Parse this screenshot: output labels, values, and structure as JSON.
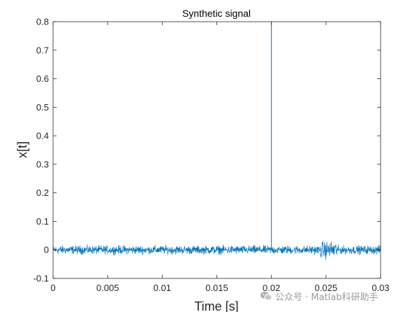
{
  "chart_data": {
    "type": "line",
    "title": "Synthetic signal",
    "xlabel": "Time [s]",
    "ylabel": "x[t]",
    "xlim": [
      0,
      0.03
    ],
    "ylim": [
      -0.1,
      0.8
    ],
    "xticks": [
      0,
      0.005,
      0.01,
      0.015,
      0.02,
      0.025,
      0.03
    ],
    "xtick_labels": [
      "0",
      "0.005",
      "0.01",
      "0.015",
      "0.02",
      "0.025",
      "0.03"
    ],
    "yticks": [
      -0.1,
      0,
      0.1,
      0.2,
      0.3,
      0.4,
      0.5,
      0.6,
      0.7,
      0.8
    ],
    "ytick_labels": [
      "-0.1",
      "0",
      "0.1",
      "0.2",
      "0.3",
      "0.4",
      "0.5",
      "0.6",
      "0.7",
      "0.8"
    ],
    "grid": false,
    "series": [
      {
        "color": "#0072bd",
        "description_points": {
          "noise_amplitude": 0.012,
          "spike": {
            "x": 0.02,
            "y": 0.8
          },
          "burst": {
            "x_start": 0.0245,
            "x_end": 0.026,
            "amplitude": 0.04
          }
        }
      }
    ]
  },
  "watermark": {
    "text": "公众号 · Matlab科研助手",
    "icon": "wechat-icon"
  },
  "colors": {
    "line": "#0072bd",
    "axes": "#262626",
    "watermark": "#9a9a9a"
  }
}
